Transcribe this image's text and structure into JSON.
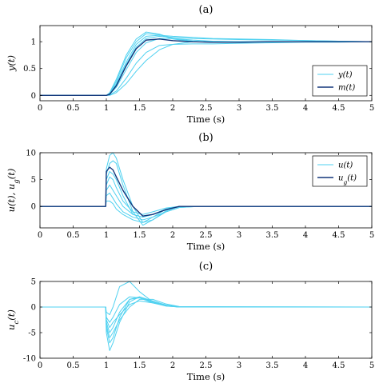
{
  "colors": {
    "light": "#4fd1f0",
    "dark": "#12357a",
    "mid": "#1a7fc4"
  },
  "chart_data": [
    {
      "type": "line",
      "panel": "(a)",
      "xlabel": "Time (s)",
      "ylabel": "y(t)",
      "xlim": [
        0,
        5
      ],
      "ylim": [
        -0.1,
        1.3
      ],
      "xticks": [
        "0",
        "0.5",
        "1",
        "1.5",
        "2",
        "2.5",
        "3",
        "3.5",
        "4",
        "4.5",
        "5"
      ],
      "yticks": [
        "0",
        "0.5",
        "1"
      ],
      "legend_position": "bottom-right",
      "legend": [
        {
          "label": "y(t)",
          "color": "light"
        },
        {
          "label": "m(t)",
          "color": "dark"
        }
      ],
      "series": [
        {
          "name": "y(t)",
          "color": "light",
          "x": [
            0,
            1.0,
            1.05,
            1.15,
            1.3,
            1.45,
            1.6,
            1.8,
            2.0,
            2.3,
            2.6,
            3.0,
            3.5,
            4.0,
            4.5,
            5.0
          ],
          "y": [
            0,
            0,
            0.05,
            0.3,
            0.75,
            1.05,
            1.18,
            1.14,
            1.06,
            1.01,
            0.99,
            0.99,
            1.0,
            1.0,
            1.0,
            1.0
          ]
        },
        {
          "name": "y(t)",
          "color": "light",
          "x": [
            0,
            1.0,
            1.05,
            1.15,
            1.3,
            1.45,
            1.6,
            1.8,
            2.0,
            2.3,
            2.6,
            3.0,
            3.5,
            4.0,
            4.5,
            5.0
          ],
          "y": [
            0,
            0,
            0.04,
            0.26,
            0.7,
            1.0,
            1.15,
            1.13,
            1.05,
            1.0,
            0.99,
            0.99,
            1.0,
            1.0,
            1.0,
            1.0
          ]
        },
        {
          "name": "y(t)",
          "color": "light",
          "x": [
            0,
            1.0,
            1.05,
            1.15,
            1.3,
            1.45,
            1.6,
            1.8,
            2.0,
            2.3,
            2.6,
            3.0,
            3.5,
            4.0,
            4.5,
            5.0
          ],
          "y": [
            0,
            0,
            0.03,
            0.22,
            0.62,
            0.95,
            1.1,
            1.12,
            1.1,
            1.08,
            1.06,
            1.05,
            1.04,
            1.02,
            1.01,
            1.0
          ]
        },
        {
          "name": "y(t)",
          "color": "light",
          "x": [
            0,
            1.0,
            1.05,
            1.15,
            1.3,
            1.45,
            1.6,
            1.8,
            2.0,
            2.3,
            2.6,
            3.0,
            3.5,
            4.0,
            4.5,
            5.0
          ],
          "y": [
            0,
            0,
            0.03,
            0.2,
            0.58,
            0.9,
            1.06,
            1.1,
            1.08,
            1.06,
            1.05,
            1.04,
            1.03,
            1.02,
            1.01,
            1.0
          ]
        },
        {
          "name": "y(t)",
          "color": "light",
          "x": [
            0,
            1.0,
            1.05,
            1.15,
            1.3,
            1.45,
            1.6,
            1.8,
            2.0,
            2.3,
            2.6,
            3.0,
            3.5,
            4.0,
            4.5,
            5.0
          ],
          "y": [
            0,
            0,
            0.02,
            0.15,
            0.48,
            0.8,
            0.98,
            1.06,
            1.06,
            1.03,
            1.01,
            1.0,
            1.0,
            1.0,
            1.0,
            1.0
          ]
        },
        {
          "name": "y(t)",
          "color": "light",
          "x": [
            0,
            1.0,
            1.05,
            1.15,
            1.3,
            1.45,
            1.6,
            1.8,
            2.0,
            2.3,
            2.6,
            3.0,
            3.5,
            4.0,
            4.5,
            5.0
          ],
          "y": [
            0,
            0,
            0.01,
            0.08,
            0.32,
            0.6,
            0.8,
            0.93,
            0.95,
            0.96,
            0.96,
            0.97,
            0.98,
            0.99,
            0.99,
            1.0
          ]
        },
        {
          "name": "y(t)",
          "color": "light",
          "x": [
            0,
            1.0,
            1.05,
            1.15,
            1.3,
            1.45,
            1.6,
            1.8,
            2.0,
            2.3,
            2.6,
            3.0,
            3.5,
            4.0,
            4.5,
            5.0
          ],
          "y": [
            0,
            0,
            0.0,
            0.05,
            0.22,
            0.45,
            0.65,
            0.85,
            0.95,
            1.0,
            1.0,
            1.0,
            1.0,
            1.0,
            1.0,
            1.0
          ]
        },
        {
          "name": "m(t)",
          "color": "dark",
          "x": [
            0,
            1.0,
            1.05,
            1.15,
            1.3,
            1.45,
            1.6,
            1.8,
            2.0,
            2.3,
            2.6,
            3.0,
            3.5,
            4.0,
            4.5,
            5.0
          ],
          "y": [
            0,
            0,
            0.02,
            0.18,
            0.55,
            0.87,
            1.03,
            1.05,
            1.02,
            1.0,
            0.99,
            0.99,
            1.0,
            1.0,
            1.0,
            1.0
          ]
        }
      ]
    },
    {
      "type": "line",
      "panel": "(b)",
      "xlabel": "Time (s)",
      "ylabel": "u(t),  u_g(t)",
      "xlim": [
        0,
        5
      ],
      "ylim": [
        -4,
        10
      ],
      "xticks": [
        "0",
        "0.5",
        "1",
        "1.5",
        "2",
        "2.5",
        "3",
        "3.5",
        "4",
        "4.5",
        "5"
      ],
      "yticks": [
        "0",
        "5",
        "10"
      ],
      "legend_position": "top-right",
      "legend": [
        {
          "label": "u(t)",
          "color": "light"
        },
        {
          "label": "u_g(t)",
          "color": "dark"
        }
      ],
      "series": [
        {
          "name": "u(t)",
          "color": "light",
          "x": [
            0,
            0.99,
            1.0,
            1.05,
            1.1,
            1.15,
            1.25,
            1.4,
            1.55,
            1.7,
            1.9,
            2.1,
            2.4,
            5.0
          ],
          "y": [
            0,
            0,
            7,
            9.5,
            10,
            9,
            5,
            0,
            -3,
            -2,
            -0.5,
            0,
            0,
            0
          ]
        },
        {
          "name": "u(t)",
          "color": "light",
          "x": [
            0,
            0.99,
            1.0,
            1.05,
            1.1,
            1.15,
            1.25,
            1.4,
            1.55,
            1.7,
            1.9,
            2.1,
            2.4,
            5.0
          ],
          "y": [
            0,
            0,
            6,
            8,
            8.5,
            8,
            4,
            -1,
            -3.5,
            -2.5,
            -0.8,
            0,
            0,
            0
          ]
        },
        {
          "name": "u(t)",
          "color": "light",
          "x": [
            0,
            0.99,
            1.0,
            1.05,
            1.1,
            1.15,
            1.25,
            1.4,
            1.55,
            1.7,
            1.9,
            2.1,
            2.4,
            5.0
          ],
          "y": [
            0,
            0,
            5,
            6.5,
            6,
            5,
            2,
            -1.5,
            -2,
            -1.5,
            -0.5,
            0,
            0,
            0
          ]
        },
        {
          "name": "u(t)",
          "color": "light",
          "x": [
            0,
            0.99,
            1.0,
            1.05,
            1.1,
            1.15,
            1.25,
            1.4,
            1.55,
            1.7,
            1.9,
            2.1,
            2.4,
            5.0
          ],
          "y": [
            0,
            0,
            3,
            4,
            3,
            2,
            0,
            -1.5,
            -2,
            -1.5,
            -0.5,
            0,
            0,
            0
          ]
        },
        {
          "name": "u(t)",
          "color": "light",
          "x": [
            0,
            0.99,
            1.0,
            1.05,
            1.1,
            1.15,
            1.25,
            1.4,
            1.55,
            1.7,
            1.9,
            2.1,
            2.4,
            5.0
          ],
          "y": [
            0,
            0,
            2,
            2.5,
            1.5,
            0.5,
            -1,
            -2,
            -2.5,
            -2,
            -1,
            -0.2,
            0,
            0
          ]
        },
        {
          "name": "u(t)",
          "color": "light",
          "x": [
            0,
            0.99,
            1.0,
            1.05,
            1.1,
            1.15,
            1.25,
            1.4,
            1.55,
            1.7,
            1.9,
            2.1,
            2.4,
            5.0
          ],
          "y": [
            0,
            0,
            1,
            1,
            0.5,
            -0.5,
            -1.5,
            -2.5,
            -3,
            -2.5,
            -1,
            -0.2,
            0,
            0
          ]
        },
        {
          "name": "u(t)",
          "color": "light",
          "x": [
            0,
            0.99,
            1.0,
            1.05,
            1.1,
            1.15,
            1.25,
            1.4,
            1.55,
            1.7,
            1.9,
            2.1,
            2.4,
            5.0
          ],
          "y": [
            0,
            0,
            4,
            5.5,
            5,
            3.5,
            1,
            -1,
            -1.5,
            -1,
            -0.3,
            0,
            0,
            0
          ]
        },
        {
          "name": "u_g(t)",
          "color": "dark",
          "x": [
            0,
            0.99,
            1.0,
            1.05,
            1.1,
            1.15,
            1.25,
            1.4,
            1.55,
            1.7,
            1.9,
            2.1,
            2.4,
            5.0
          ],
          "y": [
            0,
            0,
            6.5,
            7.3,
            6.8,
            5.5,
            3,
            0,
            -1.8,
            -1.5,
            -0.6,
            0,
            0,
            0
          ]
        }
      ]
    },
    {
      "type": "line",
      "panel": "(c)",
      "xlabel": "Time (s)",
      "ylabel": "u_c(t)",
      "xlim": [
        0,
        5
      ],
      "ylim": [
        -10,
        5
      ],
      "xticks": [
        "0",
        "0.5",
        "1",
        "1.5",
        "2",
        "2.5",
        "3",
        "3.5",
        "4",
        "4.5",
        "5"
      ],
      "yticks": [
        "-10",
        "-5",
        "0",
        "5"
      ],
      "series": [
        {
          "color": "light",
          "x": [
            0,
            0.99,
            1.0,
            1.05,
            1.1,
            1.2,
            1.35,
            1.5,
            1.7,
            1.9,
            2.1,
            5.0
          ],
          "y": [
            0,
            0,
            -5,
            -8.5,
            -7,
            -3,
            1,
            2,
            1,
            0.3,
            0,
            0
          ]
        },
        {
          "color": "light",
          "x": [
            0,
            0.99,
            1.0,
            1.05,
            1.1,
            1.2,
            1.35,
            1.5,
            1.7,
            1.9,
            2.1,
            5.0
          ],
          "y": [
            0,
            0,
            -4,
            -7,
            -6,
            -2,
            1.5,
            2,
            1.2,
            0.4,
            0,
            0
          ]
        },
        {
          "color": "light",
          "x": [
            0,
            0.99,
            1.0,
            1.05,
            1.1,
            1.2,
            1.35,
            1.5,
            1.7,
            1.9,
            2.1,
            5.0
          ],
          "y": [
            0,
            0,
            -3,
            -5,
            -4,
            -1,
            1.5,
            1.8,
            1,
            0.3,
            0,
            0
          ]
        },
        {
          "color": "light",
          "x": [
            0,
            0.99,
            1.0,
            1.05,
            1.1,
            1.2,
            1.35,
            1.5,
            1.7,
            1.9,
            2.1,
            5.0
          ],
          "y": [
            0,
            0,
            -2,
            -3,
            -2,
            0.5,
            2,
            1.8,
            0.8,
            0.2,
            0,
            0
          ]
        },
        {
          "color": "light",
          "x": [
            0,
            0.99,
            1.0,
            1.05,
            1.1,
            1.2,
            1.35,
            1.5,
            1.7,
            1.9,
            2.1,
            5.0
          ],
          "y": [
            0,
            0,
            -1,
            -1.5,
            0,
            4,
            5,
            3,
            1,
            0.2,
            0,
            0
          ]
        },
        {
          "color": "light",
          "x": [
            0,
            0.99,
            1.0,
            1.05,
            1.1,
            1.2,
            1.35,
            1.5,
            1.7,
            1.9,
            2.1,
            5.0
          ],
          "y": [
            0,
            0,
            -3.5,
            -6,
            -5,
            -2.5,
            0,
            1.5,
            1.5,
            0.6,
            0.1,
            0
          ]
        },
        {
          "color": "light",
          "x": [
            0,
            0.99,
            1.0,
            1.05,
            1.1,
            1.2,
            1.35,
            1.5,
            1.7,
            1.9,
            2.1,
            5.0
          ],
          "y": [
            0,
            0,
            -2.5,
            -4,
            -3,
            -1.5,
            0.5,
            1.2,
            0.8,
            0.3,
            0,
            0
          ]
        }
      ]
    }
  ]
}
